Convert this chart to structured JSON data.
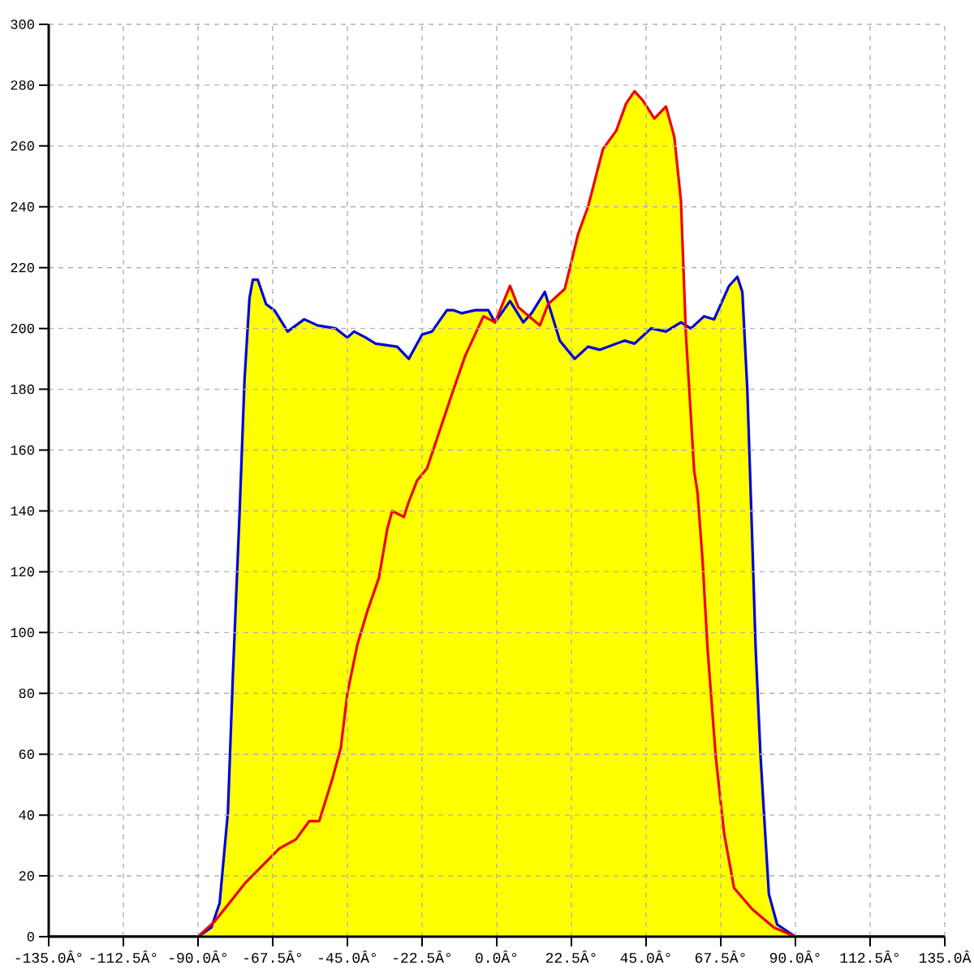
{
  "chart_data": {
    "type": "line",
    "xlim": [
      -135,
      135
    ],
    "ylim": [
      0,
      300
    ],
    "xticks": [
      {
        "value": -135,
        "label": "-135.0Â°"
      },
      {
        "value": -112.5,
        "label": "-112.5Â°"
      },
      {
        "value": -90,
        "label": "-90.0Â°"
      },
      {
        "value": -67.5,
        "label": "-67.5Â°"
      },
      {
        "value": -45,
        "label": "-45.0Â°"
      },
      {
        "value": -22.5,
        "label": "-22.5Â°"
      },
      {
        "value": 0,
        "label": "0.0Â°"
      },
      {
        "value": 22.5,
        "label": "22.5Â°"
      },
      {
        "value": 45,
        "label": "45.0Â°"
      },
      {
        "value": 67.5,
        "label": "67.5Â°"
      },
      {
        "value": 90,
        "label": "90.0Â°"
      },
      {
        "value": 112.5,
        "label": "112.5Â°"
      },
      {
        "value": 135,
        "label": "135.0Â"
      }
    ],
    "yticks": [
      0,
      20,
      40,
      60,
      80,
      100,
      120,
      140,
      160,
      180,
      200,
      220,
      240,
      260,
      280,
      300
    ],
    "grid": true,
    "series": [
      {
        "color": "#0000dd",
        "x": [
          -135,
          -90,
          -86,
          -83.5,
          -81,
          -79.5,
          -77.5,
          -76,
          -74.5,
          -73.5,
          -72,
          -69.5,
          -67,
          -63,
          -58,
          -54,
          -48.5,
          -45,
          -43,
          -39.5,
          -36.5,
          -30,
          -26.5,
          -22.5,
          -19.5,
          -15,
          -13,
          -10.5,
          -6.5,
          -2.5,
          -0.5,
          4,
          8,
          10.5,
          14.5,
          19,
          23.5,
          27.5,
          31,
          38.5,
          41.5,
          46.5,
          51,
          55.5,
          58.5,
          62.5,
          65.5,
          70,
          72.5,
          74,
          75.5,
          77,
          78,
          79.5,
          81,
          82,
          84.5,
          90,
          135
        ],
        "values": [
          0,
          0,
          3,
          11,
          41,
          86,
          139,
          183,
          210,
          216,
          216,
          208,
          206,
          199,
          203,
          201,
          200,
          197,
          199,
          197,
          195,
          194,
          190,
          198,
          199,
          206,
          206,
          205,
          206,
          206,
          202,
          209,
          202,
          205,
          212,
          196,
          190,
          194,
          193,
          196,
          195,
          200,
          199,
          202,
          200,
          204,
          203,
          214,
          217,
          212,
          180,
          130,
          95,
          59,
          32,
          14,
          4,
          0,
          0
        ]
      },
      {
        "color": "#ee0000",
        "x": [
          -135,
          -90,
          -85,
          -75.5,
          -65.5,
          -60.5,
          -56.5,
          -53.5,
          -49.5,
          -47,
          -45,
          -42,
          -39,
          -35.5,
          -33,
          -31.5,
          -28,
          -26.5,
          -24,
          -21,
          -17,
          -13,
          -9.5,
          -4,
          -0.5,
          4,
          6.5,
          13,
          15.5,
          20.5,
          24.5,
          27.5,
          32,
          36,
          39,
          41.5,
          44,
          47.5,
          51,
          53.5,
          55.5,
          57,
          59.5,
          60.5,
          62,
          63.5,
          66,
          68.5,
          71.5,
          77,
          83.5,
          90,
          135
        ],
        "values": [
          0,
          0,
          5,
          18,
          29,
          32,
          38,
          38,
          52,
          62,
          80,
          96,
          107,
          118,
          134,
          140,
          138,
          143,
          150,
          154,
          167,
          180,
          191,
          204,
          202,
          214,
          207,
          201,
          208,
          213,
          231,
          240,
          259,
          265,
          274,
          278,
          275,
          269,
          273,
          263,
          242,
          198,
          153,
          146,
          124,
          95,
          59,
          34,
          16,
          9,
          3,
          0,
          0
        ]
      },
      {
        "type": "area",
        "color": "#ffff00",
        "x": [
          -90,
          -86,
          -83.5,
          -81,
          -79.5,
          -77.5,
          -76,
          -74.5,
          -73.5,
          -72,
          -69.5,
          -67,
          -63,
          -58,
          -54,
          -48.5,
          -45,
          -43,
          -39.5,
          -36.5,
          -30,
          -26.5,
          -22.5,
          -19.5,
          -15,
          -13,
          -10.5,
          -6.5,
          -2.5,
          -0.5,
          4,
          6.5,
          9.5,
          10.5,
          14.5,
          15.5,
          20.5,
          24.5,
          27.5,
          32,
          36,
          39,
          41.5,
          44,
          47.5,
          51,
          53.5,
          55.5,
          57,
          58.5,
          62.5,
          65.5,
          70,
          72.5,
          74,
          75.5,
          77,
          78,
          79.5,
          81,
          82,
          84.5,
          90
        ],
        "values": [
          0,
          3,
          11,
          41,
          86,
          139,
          183,
          210,
          216,
          216,
          208,
          206,
          199,
          203,
          201,
          200,
          197,
          199,
          197,
          195,
          194,
          190,
          198,
          199,
          206,
          206,
          205,
          206,
          206,
          202,
          214,
          207,
          204,
          205,
          212,
          208,
          213,
          231,
          240,
          259,
          265,
          274,
          278,
          275,
          269,
          273,
          263,
          242,
          201,
          200,
          204,
          203,
          214,
          217,
          212,
          180,
          130,
          95,
          59,
          32,
          14,
          4,
          0
        ]
      }
    ]
  }
}
